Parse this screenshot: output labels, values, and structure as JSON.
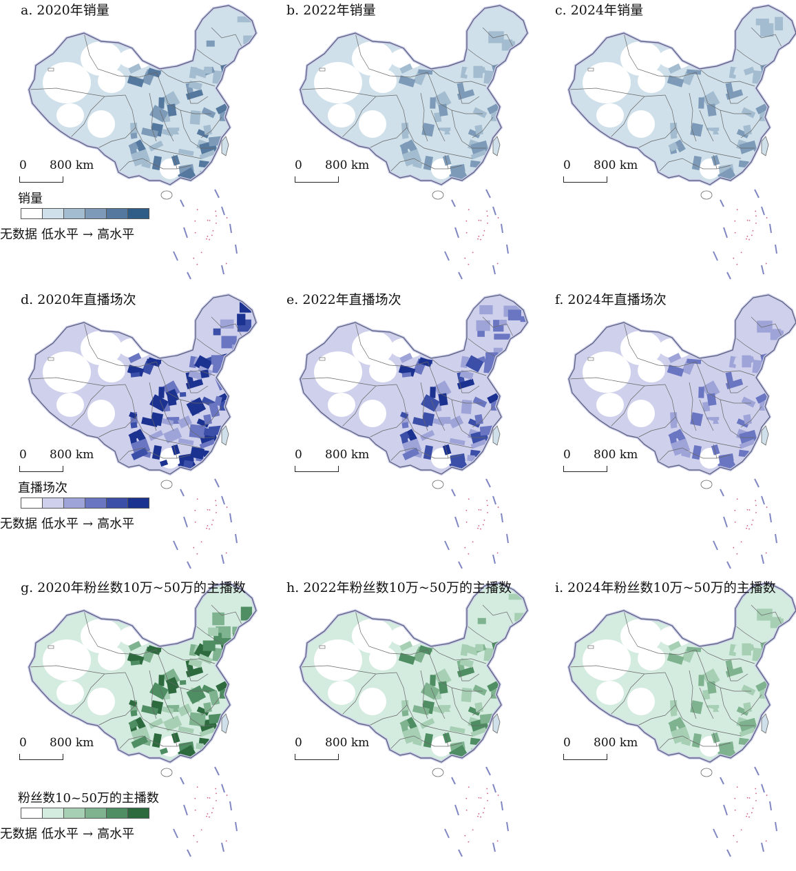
{
  "panels": [
    {
      "id": "a",
      "title": "a. 2020年销量",
      "ramp": "blue",
      "inten": 0.55,
      "row": 0,
      "col": 0
    },
    {
      "id": "b",
      "title": "b. 2022年销量",
      "ramp": "blue",
      "inten": 0.45,
      "row": 0,
      "col": 1
    },
    {
      "id": "c",
      "title": "c. 2024年销量",
      "ramp": "blue",
      "inten": 0.4,
      "row": 0,
      "col": 2
    },
    {
      "id": "d",
      "title": "d. 2020年直播场次",
      "ramp": "purple",
      "inten": 0.9,
      "row": 1,
      "col": 0
    },
    {
      "id": "e",
      "title": "e. 2022年直播场次",
      "ramp": "purple",
      "inten": 0.65,
      "row": 1,
      "col": 1
    },
    {
      "id": "f",
      "title": "f. 2024年直播场次",
      "ramp": "purple",
      "inten": 0.45,
      "row": 1,
      "col": 2
    },
    {
      "id": "g",
      "title": "g. 2020年粉丝数10万~50万的主播数",
      "ramp": "green",
      "inten": 0.8,
      "row": 2,
      "col": 0
    },
    {
      "id": "h",
      "title": "h. 2022年粉丝数10万~50万的主播数",
      "ramp": "green",
      "inten": 0.55,
      "row": 2,
      "col": 1
    },
    {
      "id": "i",
      "title": "i. 2024年粉丝数10万~50万的主播数",
      "ramp": "green",
      "inten": 0.45,
      "row": 2,
      "col": 2
    }
  ],
  "scalebar": {
    "zero": "0",
    "dist": "800 km"
  },
  "legends": [
    {
      "title": "销量",
      "nodata": "无数据",
      "low": "低水平",
      "arrow": "→",
      "high": "高水平",
      "ramp": "blue"
    },
    {
      "title": "直播场次",
      "nodata": "无数据",
      "low": "低水平",
      "arrow": "→",
      "high": "高水平",
      "ramp": "purple"
    },
    {
      "title": "粉丝数10~50万的主播数",
      "nodata": "无数据",
      "low": "低水平",
      "arrow": "→",
      "high": "高水平",
      "ramp": "green"
    }
  ],
  "colors": {
    "blue": [
      "#ffffff",
      "#cfe0ea",
      "#a3bccf",
      "#7d9bb8",
      "#55789e",
      "#2f5d87"
    ],
    "purple": [
      "#ffffff",
      "#cfd0ec",
      "#9ea4d8",
      "#6a76c1",
      "#3b4fa8",
      "#1c3290"
    ],
    "green": [
      "#ffffff",
      "#d4ebe0",
      "#a6cfb4",
      "#7fb38f",
      "#4f8d62",
      "#2d6b3f"
    ],
    "outline": "#8890c8",
    "border": "#666666"
  }
}
